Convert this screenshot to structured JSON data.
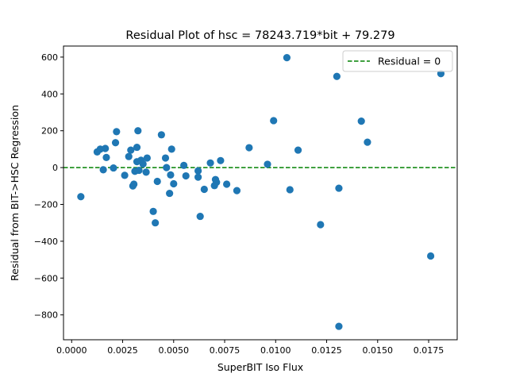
{
  "chart_data": {
    "type": "scatter",
    "title": "Residual Plot of hsc = 78243.719*bit + 79.279",
    "xlabel": "SuperBIT Iso Flux",
    "ylabel": "Residual from BIT->HSC Regression",
    "xlim": [
      -0.0004,
      0.0189
    ],
    "ylim": [
      -935,
      660
    ],
    "xticks": [
      0.0,
      0.0025,
      0.005,
      0.0075,
      0.01,
      0.0125,
      0.015,
      0.0175
    ],
    "xtick_labels": [
      "0.0000",
      "0.0025",
      "0.0050",
      "0.0075",
      "0.0100",
      "0.0125",
      "0.0150",
      "0.0175"
    ],
    "yticks": [
      600,
      400,
      200,
      0,
      -200,
      -400,
      -600,
      -800
    ],
    "ytick_labels": [
      "600",
      "400",
      "200",
      "0",
      "−200",
      "−400",
      "−600",
      "−800"
    ],
    "grid": false,
    "legend": {
      "position": "top-right",
      "entries": [
        {
          "label": "Residual = 0",
          "style": "dashed-line",
          "color": "#008000"
        }
      ]
    },
    "reference_line": {
      "y": 0,
      "color": "#008000",
      "style": "dashed"
    },
    "series": [
      {
        "color": "#1f77b4",
        "points": [
          [
            0.00045,
            -158
          ],
          [
            0.00125,
            85
          ],
          [
            0.0014,
            100
          ],
          [
            0.00155,
            -12
          ],
          [
            0.00165,
            104
          ],
          [
            0.0017,
            55
          ],
          [
            0.00205,
            -2
          ],
          [
            0.00215,
            135
          ],
          [
            0.0022,
            195
          ],
          [
            0.0026,
            -42
          ],
          [
            0.0028,
            60
          ],
          [
            0.0029,
            95
          ],
          [
            0.003,
            -100
          ],
          [
            0.00305,
            -90
          ],
          [
            0.0031,
            -20
          ],
          [
            0.0032,
            110
          ],
          [
            0.0032,
            32
          ],
          [
            0.00325,
            200
          ],
          [
            0.0033,
            -15
          ],
          [
            0.0034,
            40
          ],
          [
            0.0035,
            20
          ],
          [
            0.00365,
            -25
          ],
          [
            0.0037,
            52
          ],
          [
            0.004,
            -238
          ],
          [
            0.0041,
            -300
          ],
          [
            0.0042,
            -75
          ],
          [
            0.0044,
            178
          ],
          [
            0.0046,
            52
          ],
          [
            0.00465,
            0
          ],
          [
            0.0048,
            -140
          ],
          [
            0.00485,
            -40
          ],
          [
            0.0049,
            100
          ],
          [
            0.005,
            -88
          ],
          [
            0.0055,
            12
          ],
          [
            0.0056,
            -45
          ],
          [
            0.0062,
            -18
          ],
          [
            0.0062,
            -52
          ],
          [
            0.0063,
            -265
          ],
          [
            0.0065,
            -118
          ],
          [
            0.0068,
            25
          ],
          [
            0.007,
            -98
          ],
          [
            0.00705,
            -65
          ],
          [
            0.0071,
            -80
          ],
          [
            0.0073,
            38
          ],
          [
            0.0076,
            -90
          ],
          [
            0.0081,
            -125
          ],
          [
            0.0087,
            108
          ],
          [
            0.0096,
            18
          ],
          [
            0.0099,
            255
          ],
          [
            0.01055,
            597
          ],
          [
            0.0107,
            -120
          ],
          [
            0.0111,
            95
          ],
          [
            0.0122,
            -310
          ],
          [
            0.013,
            495
          ],
          [
            0.0131,
            -112
          ],
          [
            0.0131,
            -862
          ],
          [
            0.0142,
            252
          ],
          [
            0.0145,
            138
          ],
          [
            0.0176,
            -480
          ],
          [
            0.0181,
            510
          ]
        ]
      }
    ]
  }
}
